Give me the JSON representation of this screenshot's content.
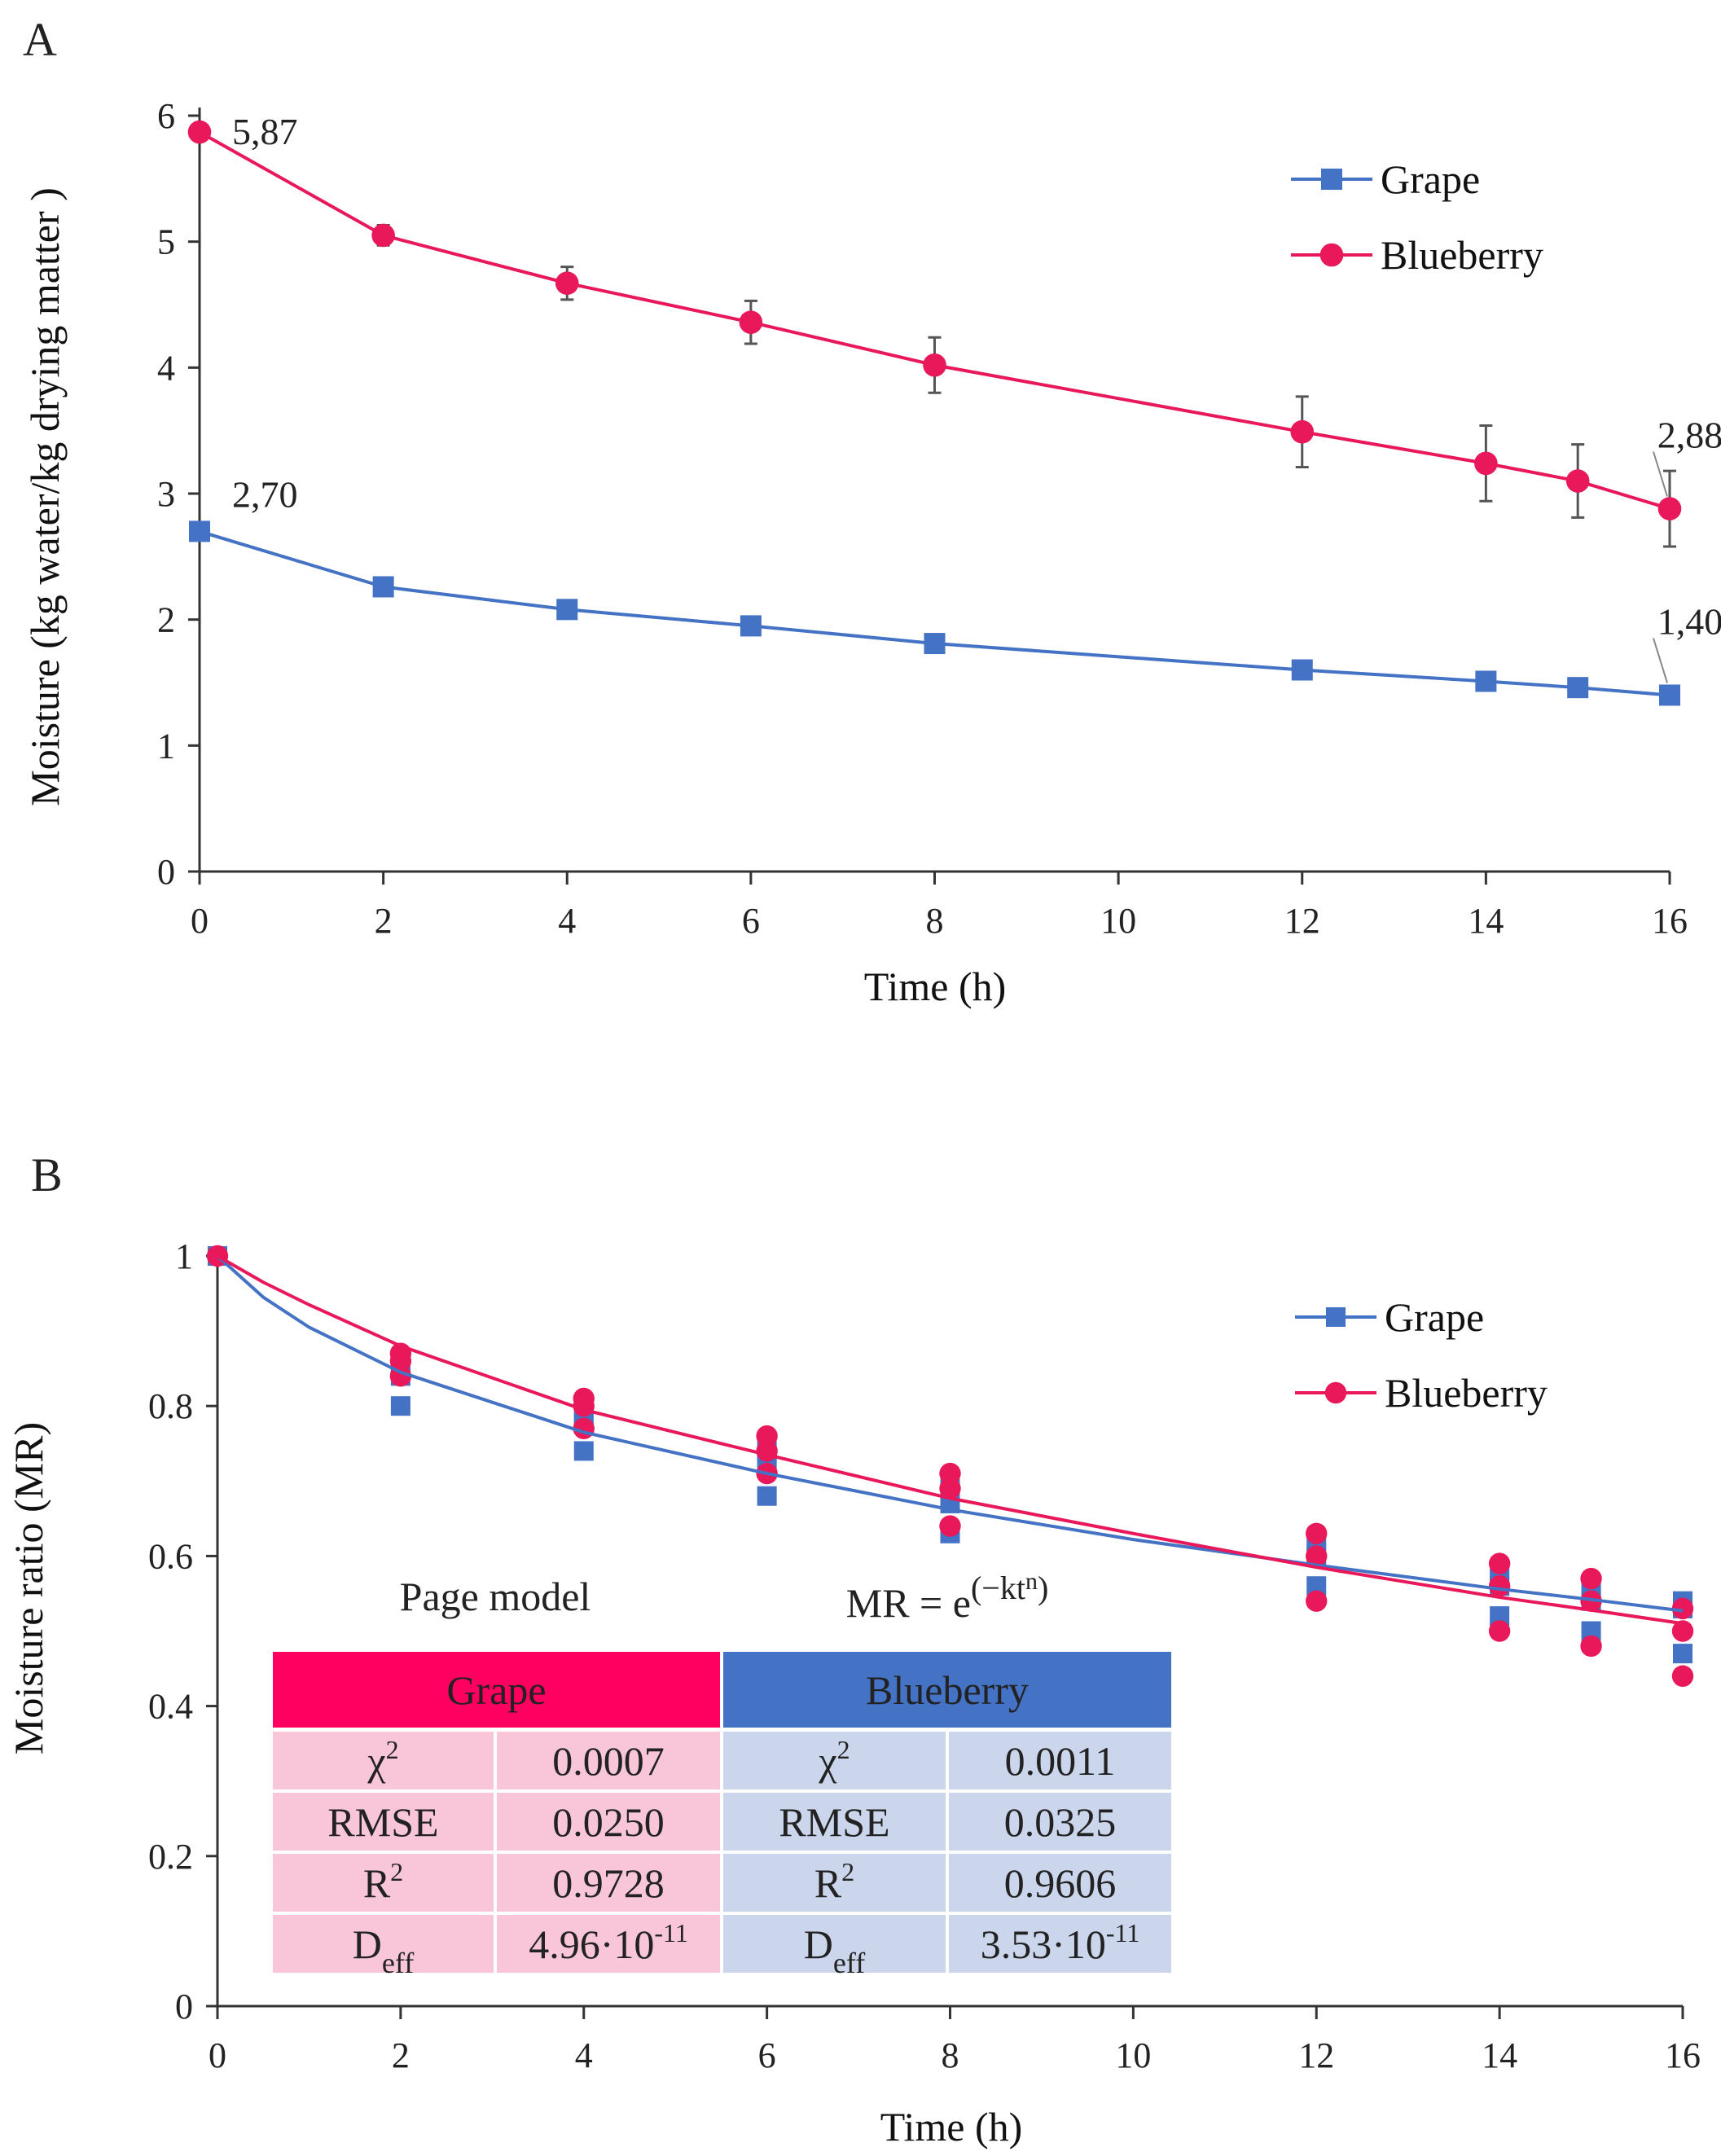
{
  "colors": {
    "grape": "#4472C4",
    "blueberry": "#E8185A",
    "table_grape_header": "#FF0060",
    "table_blueberry_header": "#4472C4",
    "table_grape_cell": "#F9C6D9",
    "table_blueberry_cell": "#CBD6EC",
    "error_bar": "#555555"
  },
  "chart_data": [
    {
      "type": "line",
      "panel_label": "A",
      "xlabel": "Time (h)",
      "ylabel": "Moisture (kg water/kg drying matter )",
      "xlim": [
        0,
        16
      ],
      "ylim": [
        0,
        6
      ],
      "xticks": [
        0,
        2,
        4,
        6,
        8,
        10,
        12,
        14,
        16
      ],
      "yticks": [
        0,
        1,
        2,
        3,
        4,
        5,
        6
      ],
      "legend_position": "top-right",
      "x": [
        0,
        2,
        4,
        6,
        8,
        12,
        14,
        15,
        16
      ],
      "series": [
        {
          "name": "Grape",
          "marker": "square",
          "values": [
            2.7,
            2.26,
            2.08,
            1.95,
            1.81,
            1.6,
            1.51,
            1.46,
            1.4
          ],
          "errors": [
            0.03,
            0.04,
            0.04,
            0.04,
            0.04,
            0.05,
            0.05,
            0.05,
            0.07
          ]
        },
        {
          "name": "Blueberry",
          "marker": "circle",
          "values": [
            5.87,
            5.05,
            4.67,
            4.36,
            4.02,
            3.49,
            3.24,
            3.1,
            2.88
          ],
          "errors": [
            0.05,
            0.08,
            0.13,
            0.17,
            0.22,
            0.28,
            0.3,
            0.29,
            0.3
          ]
        }
      ],
      "annotations": [
        {
          "series": "Blueberry",
          "x": 0,
          "text": "5,87"
        },
        {
          "series": "Grape",
          "x": 0,
          "text": "2,70"
        },
        {
          "series": "Blueberry",
          "x": 16,
          "text": "2,88"
        },
        {
          "series": "Grape",
          "x": 16,
          "text": "1,40"
        }
      ]
    },
    {
      "type": "scatter",
      "panel_label": "B",
      "xlabel": "Time (h)",
      "ylabel": "Moisture ratio (MR)",
      "xlim": [
        0,
        16
      ],
      "ylim": [
        0,
        1
      ],
      "xticks": [
        0,
        2,
        4,
        6,
        8,
        10,
        12,
        14,
        16
      ],
      "yticks": [
        "0",
        "0.2",
        "0.4",
        "0.6",
        "0.8",
        "1"
      ],
      "legend_position": "top-right",
      "series": [
        {
          "name": "Grape",
          "marker": "square",
          "points": [
            [
              0,
              1
            ],
            [
              2,
              0.8
            ],
            [
              2,
              0.84
            ],
            [
              2,
              0.85
            ],
            [
              4,
              0.74
            ],
            [
              4,
              0.78
            ],
            [
              4,
              0.79
            ],
            [
              6,
              0.68
            ],
            [
              6,
              0.72
            ],
            [
              6,
              0.74
            ],
            [
              8,
              0.63
            ],
            [
              8,
              0.67
            ],
            [
              8,
              0.69
            ],
            [
              12,
              0.56
            ],
            [
              12,
              0.6
            ],
            [
              12,
              0.62
            ],
            [
              14,
              0.52
            ],
            [
              14,
              0.56
            ],
            [
              14,
              0.58
            ],
            [
              15,
              0.5
            ],
            [
              15,
              0.54
            ],
            [
              15,
              0.56
            ],
            [
              16,
              0.47
            ],
            [
              16,
              0.53
            ],
            [
              16,
              0.54
            ]
          ],
          "fit": [
            [
              0,
              1
            ],
            [
              0.5,
              0.945
            ],
            [
              1,
              0.905
            ],
            [
              2,
              0.845
            ],
            [
              4,
              0.765
            ],
            [
              6,
              0.71
            ],
            [
              8,
              0.662
            ],
            [
              10,
              0.622
            ],
            [
              12,
              0.588
            ],
            [
              14,
              0.556
            ],
            [
              15,
              0.542
            ],
            [
              16,
              0.527
            ]
          ]
        },
        {
          "name": "Blueberry",
          "marker": "circle",
          "points": [
            [
              0,
              1
            ],
            [
              2,
              0.84
            ],
            [
              2,
              0.86
            ],
            [
              2,
              0.87
            ],
            [
              4,
              0.77
            ],
            [
              4,
              0.8
            ],
            [
              4,
              0.81
            ],
            [
              6,
              0.71
            ],
            [
              6,
              0.74
            ],
            [
              6,
              0.76
            ],
            [
              8,
              0.64
            ],
            [
              8,
              0.69
            ],
            [
              8,
              0.71
            ],
            [
              12,
              0.54
            ],
            [
              12,
              0.6
            ],
            [
              12,
              0.63
            ],
            [
              14,
              0.5
            ],
            [
              14,
              0.56
            ],
            [
              14,
              0.59
            ],
            [
              15,
              0.48
            ],
            [
              15,
              0.54
            ],
            [
              15,
              0.57
            ],
            [
              16,
              0.44
            ],
            [
              16,
              0.5
            ],
            [
              16,
              0.53
            ]
          ],
          "fit": [
            [
              0,
              1
            ],
            [
              0.5,
              0.965
            ],
            [
              1,
              0.935
            ],
            [
              2,
              0.88
            ],
            [
              4,
              0.795
            ],
            [
              6,
              0.735
            ],
            [
              8,
              0.677
            ],
            [
              10,
              0.63
            ],
            [
              12,
              0.585
            ],
            [
              14,
              0.545
            ],
            [
              15,
              0.528
            ],
            [
              16,
              0.51
            ]
          ]
        }
      ],
      "table": {
        "title": "Page model",
        "equation_base": "MR =  e",
        "equation_exponent": "(−kt",
        "equation_exponent_sup": "n",
        "equation_exponent_close": ")",
        "groups": [
          {
            "name": "Grape",
            "rows": [
              {
                "param": "χ",
                "param_sup": "2",
                "param_sub": "",
                "value": "0.0007",
                "value_sup": ""
              },
              {
                "param": "RMSE",
                "param_sup": "",
                "param_sub": "",
                "value": "0.0250",
                "value_sup": ""
              },
              {
                "param": "R",
                "param_sup": "2",
                "param_sub": "",
                "value": "0.9728",
                "value_sup": ""
              },
              {
                "param": "D",
                "param_sup": "",
                "param_sub": "eff",
                "value": "4.96·10",
                "value_sup": "-11"
              }
            ]
          },
          {
            "name": "Blueberry",
            "rows": [
              {
                "param": "χ",
                "param_sup": "2",
                "param_sub": "",
                "value": "0.0011",
                "value_sup": ""
              },
              {
                "param": "RMSE",
                "param_sup": "",
                "param_sub": "",
                "value": "0.0325",
                "value_sup": ""
              },
              {
                "param": "R",
                "param_sup": "2",
                "param_sub": "",
                "value": "0.9606",
                "value_sup": ""
              },
              {
                "param": "D",
                "param_sup": "",
                "param_sub": "eff",
                "value": "3.53·10",
                "value_sup": "-11"
              }
            ]
          }
        ]
      }
    }
  ]
}
